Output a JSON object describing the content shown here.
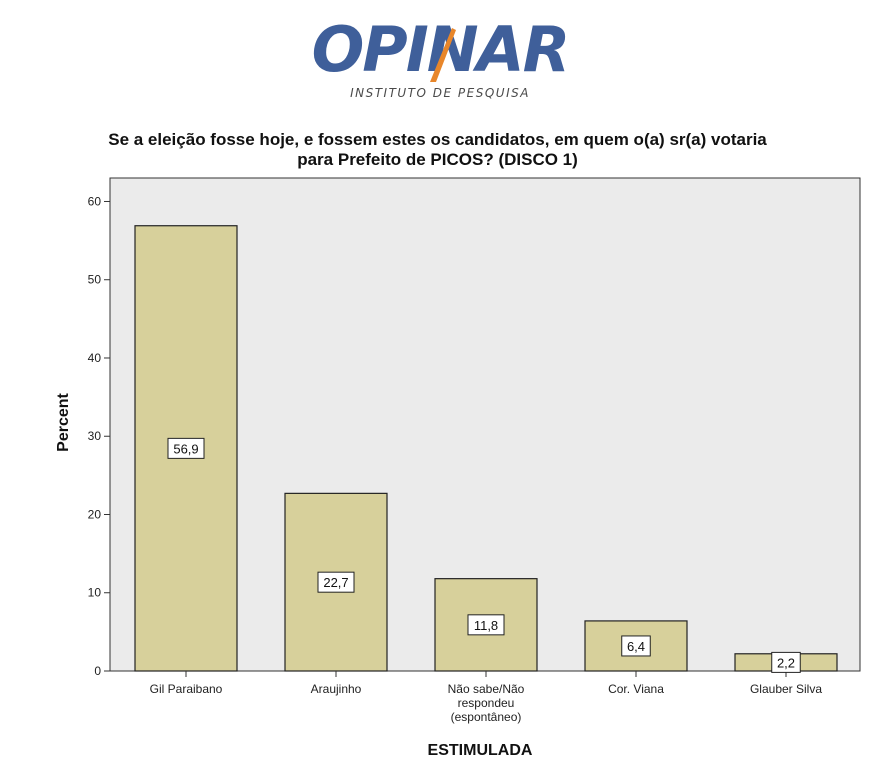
{
  "logo": {
    "brand_text": "OPINAR",
    "tagline": "INSTITUTO DE PESQUISA"
  },
  "colors": {
    "bar_fill": "#d7d09b",
    "bar_stroke": "#222222",
    "plot_background": "#ebebeb",
    "logo_blue": "#3f5f9a",
    "logo_orange": "#e8862a"
  },
  "chart_data": {
    "type": "bar",
    "title_lines": [
      "Se a eleição fosse hoje, e fossem estes os candidatos, em quem o(a) sr(a) votaria",
      "para Prefeito de PICOS? (DISCO 1)"
    ],
    "xlabel": "ESTIMULADA",
    "ylabel": "Percent",
    "ylim": [
      0,
      63
    ],
    "yticks": [
      0,
      10,
      20,
      30,
      40,
      50,
      60
    ],
    "grid": false,
    "categories": [
      [
        "Gil Paraibano"
      ],
      [
        "Araujinho"
      ],
      [
        "Não sabe/Não",
        "respondeu",
        "(espontâneo)"
      ],
      [
        "Cor. Viana"
      ],
      [
        "Glauber Silva"
      ]
    ],
    "values": [
      56.9,
      22.7,
      11.8,
      6.4,
      2.2
    ],
    "data_labels": [
      "56,9",
      "22,7",
      "11,8",
      "6,4",
      "2,2"
    ]
  }
}
